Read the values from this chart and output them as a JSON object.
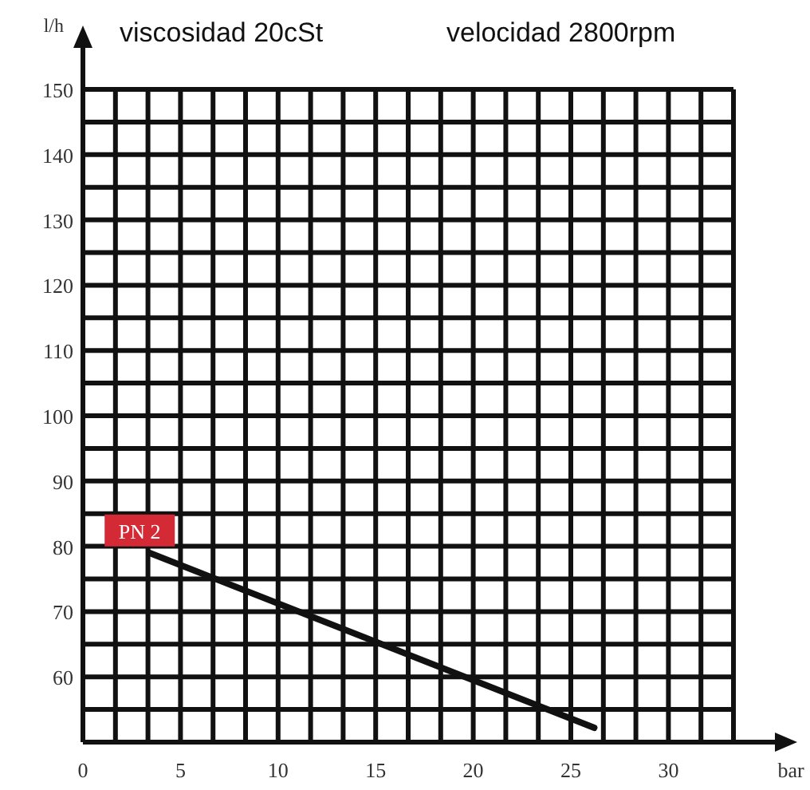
{
  "chart_data": {
    "type": "line",
    "title": "viscosidad 20cSt",
    "subtitle": "velocidad 2800rpm",
    "xlabel": "bar",
    "ylabel": "l/h",
    "xlim": [
      0,
      33.333
    ],
    "ylim": [
      50,
      150
    ],
    "xticks": [
      0,
      {
        "value": 1.667,
        "label": null
      },
      {
        "value": 3.333,
        "label": null
      },
      5,
      {
        "value": 6.667,
        "label": null
      },
      {
        "value": 8.333,
        "label": null
      },
      10,
      {
        "value": 11.667,
        "label": null
      },
      {
        "value": 13.333,
        "label": null
      },
      15,
      {
        "value": 16.667,
        "label": null
      },
      {
        "value": 18.333,
        "label": null
      },
      20,
      {
        "value": 21.667,
        "label": null
      },
      {
        "value": 23.333,
        "label": null
      },
      25,
      {
        "value": 26.667,
        "label": null
      },
      {
        "value": 28.333,
        "label": null
      },
      30,
      {
        "value": 31.667,
        "label": null
      },
      {
        "value": 33.333,
        "label": null
      }
    ],
    "yticks": [
      {
        "value": 50,
        "label": null
      },
      {
        "value": 55,
        "label": null
      },
      60,
      {
        "value": 65,
        "label": null
      },
      70,
      {
        "value": 75,
        "label": null
      },
      80,
      {
        "value": 85,
        "label": null
      },
      90,
      {
        "value": 95,
        "label": null
      },
      100,
      {
        "value": 105,
        "label": null
      },
      110,
      {
        "value": 115,
        "label": null
      },
      120,
      {
        "value": 125,
        "label": null
      },
      130,
      {
        "value": 135,
        "label": null
      },
      140,
      {
        "value": 145,
        "label": null
      },
      150
    ],
    "grid": true,
    "marker": "none",
    "line_style": "solid",
    "series": [
      {
        "name": "PN 2",
        "color": "#111111",
        "x": [
          3.4,
          26.2
        ],
        "values": [
          79,
          52.2
        ]
      }
    ]
  }
}
